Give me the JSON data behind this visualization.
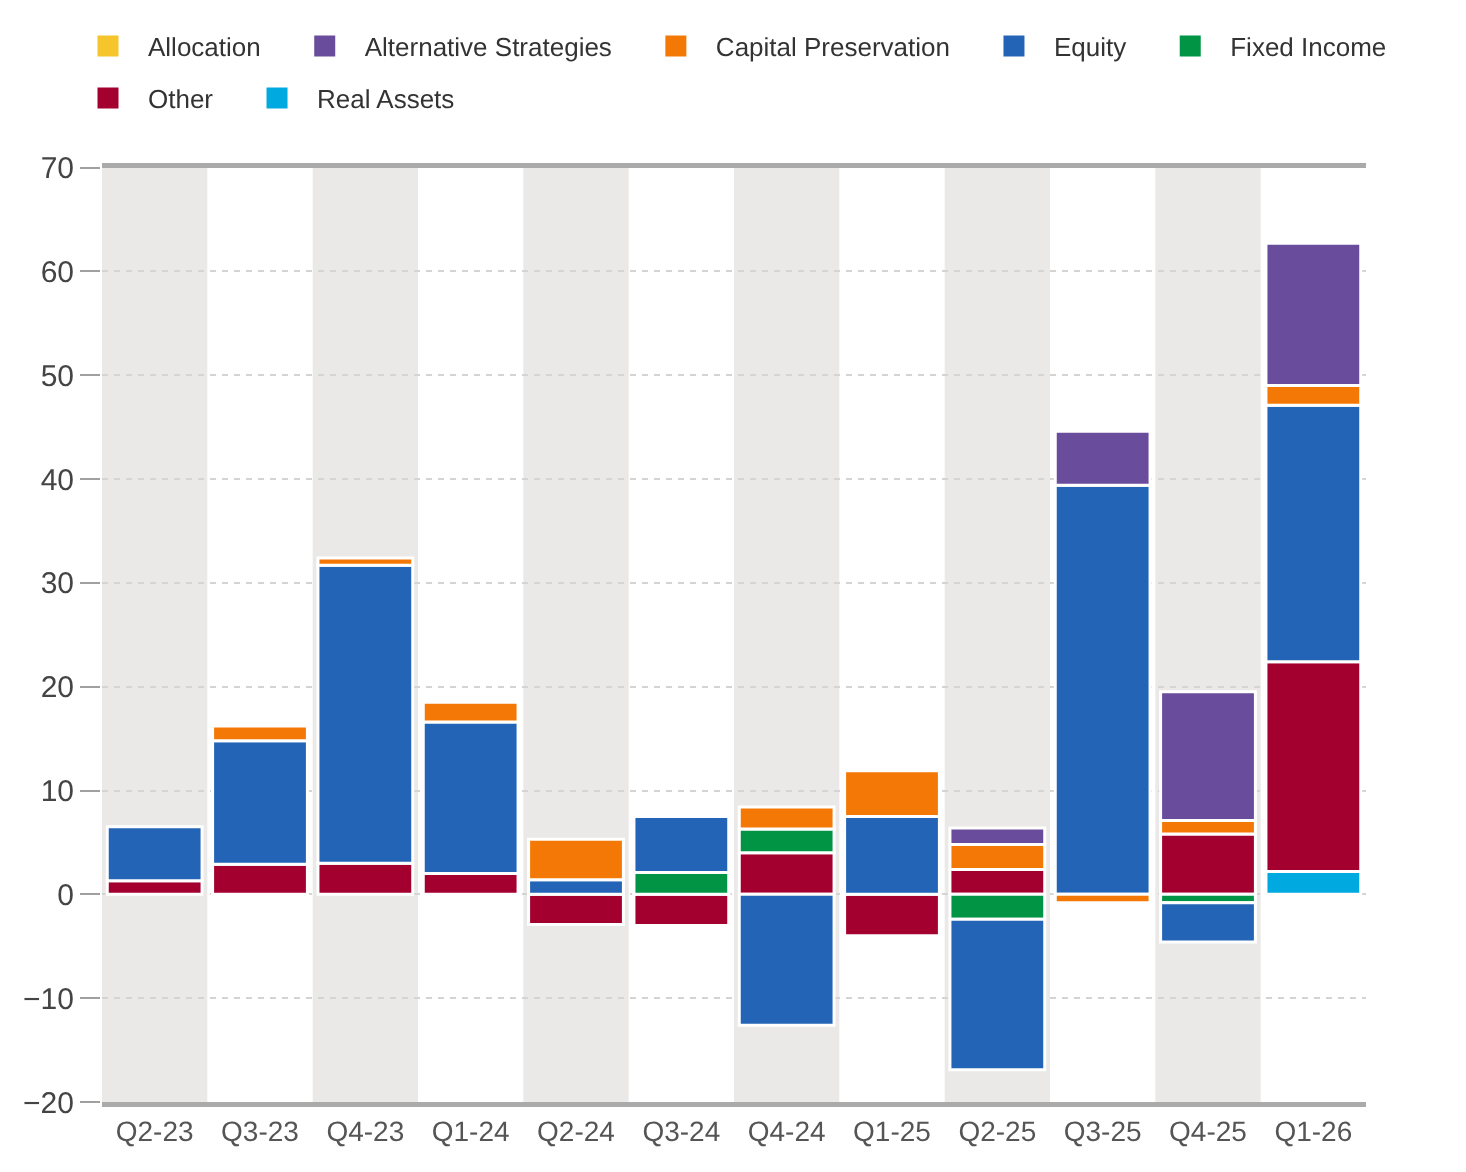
{
  "chart_data": {
    "type": "bar",
    "stacked": true,
    "categories": [
      "Q2-23",
      "Q3-23",
      "Q4-23",
      "Q1-24",
      "Q2-24",
      "Q3-24",
      "Q4-24",
      "Q1-25",
      "Q2-25",
      "Q3-25",
      "Q4-25",
      "Q1-26"
    ],
    "series": [
      {
        "name": "Real Assets",
        "color": "#00a9e0",
        "values": [
          null,
          null,
          null,
          null,
          null,
          null,
          null,
          null,
          null,
          null,
          null,
          2.2
        ]
      },
      {
        "name": "Other",
        "color": "#a3002f",
        "values": [
          1.3,
          2.9,
          3.0,
          2.0,
          -2.9,
          -3.0,
          4.0,
          -4.0,
          2.4,
          null,
          5.8,
          20.2
        ]
      },
      {
        "name": "Fixed Income",
        "color": "#009444",
        "values": [
          null,
          null,
          null,
          null,
          null,
          2.1,
          2.3,
          null,
          -2.4,
          null,
          -0.8,
          null
        ]
      },
      {
        "name": "Equity",
        "color": "#2364b7",
        "values": [
          5.2,
          11.9,
          28.7,
          14.6,
          1.4,
          5.4,
          -12.6,
          7.5,
          -14.5,
          39.4,
          -3.8,
          24.7
        ]
      },
      {
        "name": "Capital Preservation",
        "color": "#f47805",
        "values": [
          null,
          1.4,
          0.7,
          1.9,
          3.9,
          null,
          2.1,
          4.4,
          2.4,
          -0.8,
          1.3,
          1.9
        ]
      },
      {
        "name": "Alternative Strategies",
        "color": "#6a4c9c",
        "values": [
          null,
          null,
          null,
          null,
          null,
          null,
          null,
          null,
          1.6,
          5.2,
          12.4,
          13.7
        ]
      },
      {
        "name": "Allocation",
        "color": "#f5c52b",
        "values": [
          null,
          null,
          null,
          null,
          null,
          null,
          null,
          null,
          null,
          null,
          null,
          null
        ]
      }
    ],
    "ylim": [
      -20,
      70
    ],
    "yticks": [
      -20,
      -10,
      0,
      10,
      20,
      30,
      40,
      50,
      60,
      70
    ],
    "grid": "y",
    "legend": "top left",
    "bands": [
      {
        "axis": "x",
        "from": "Q2-23",
        "to": "Q2-23",
        "color": "#ebe9e7"
      },
      {
        "axis": "x",
        "from": "Q4-23",
        "to": "Q4-23",
        "color": "#ebe9e7"
      },
      {
        "axis": "x",
        "from": "Q2-24",
        "to": "Q2-24",
        "color": "#ebe9e7"
      },
      {
        "axis": "x",
        "from": "Q4-24",
        "to": "Q4-24",
        "color": "#ebe9e7"
      },
      {
        "axis": "x",
        "from": "Q2-25",
        "to": "Q2-25",
        "color": "#ebe9e7"
      },
      {
        "axis": "x",
        "from": "Q4-25",
        "to": "Q4-25",
        "color": "#ebe9e7"
      }
    ]
  }
}
